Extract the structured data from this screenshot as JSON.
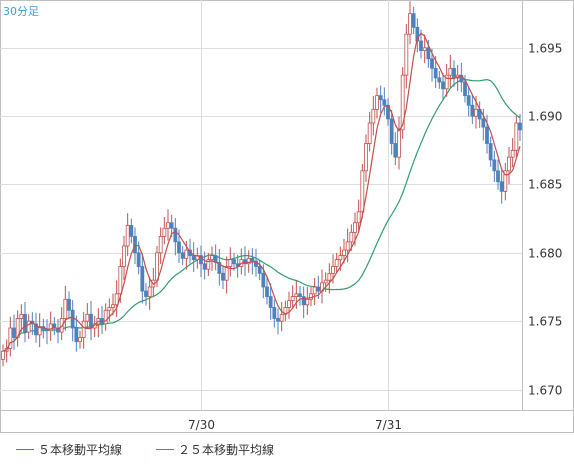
{
  "chart_data": {
    "type": "candlestick",
    "timeframe": "30分足",
    "y_ticks": [
      "1.695",
      "1.690",
      "1.685",
      "1.680",
      "1.675",
      "1.670"
    ],
    "y_tick_values": [
      1.695,
      1.69,
      1.685,
      1.68,
      1.675,
      1.67
    ],
    "x_ticks": [
      {
        "label": "7/30",
        "index": 54
      },
      {
        "label": "7/31",
        "index": 105
      }
    ],
    "ylim": [
      1.6685,
      1.6985
    ],
    "grid": true,
    "legend_position": "bottom-left",
    "series": [
      {
        "name": "５本移動平均線",
        "color": "#c0504d"
      },
      {
        "name": "２５本移動平均線",
        "color": "#2e9e6e"
      }
    ],
    "colors": {
      "up": "#c0504d",
      "down": "#4f81bd",
      "accent_text": "#3aa0d8",
      "grid": "#dddddd"
    },
    "closes": [
      1.6728,
      1.673,
      1.6745,
      1.6738,
      1.6752,
      1.6755,
      1.6742,
      1.675,
      1.6748,
      1.674,
      1.6746,
      1.6744,
      1.6743,
      1.6748,
      1.6745,
      1.6742,
      1.6752,
      1.6766,
      1.6758,
      1.6745,
      1.6735,
      1.6738,
      1.675,
      1.6755,
      1.6745,
      1.6748,
      1.6752,
      1.6748,
      1.6758,
      1.676,
      1.6762,
      1.677,
      1.679,
      1.6805,
      1.682,
      1.6812,
      1.68,
      1.679,
      1.6772,
      1.6768,
      1.6775,
      1.678,
      1.68,
      1.6812,
      1.6818,
      1.6822,
      1.6818,
      1.6808,
      1.68,
      1.6796,
      1.6802,
      1.6798,
      1.6795,
      1.6798,
      1.6792,
      1.6788,
      1.6795,
      1.6798,
      1.6793,
      1.6785,
      1.678,
      1.679,
      1.6795,
      1.6792,
      1.679,
      1.6795,
      1.6792,
      1.6796,
      1.6794,
      1.679,
      1.6785,
      1.6775,
      1.6768,
      1.676,
      1.6752,
      1.675,
      1.6755,
      1.676,
      1.6765,
      1.6768,
      1.677,
      1.6768,
      1.6762,
      1.6766,
      1.677,
      1.6775,
      1.6772,
      1.6778,
      1.678,
      1.6785,
      1.679,
      1.6795,
      1.6798,
      1.6802,
      1.6808,
      1.6815,
      1.6822,
      1.683,
      1.686,
      1.688,
      1.6895,
      1.6905,
      1.6915,
      1.6912,
      1.6908,
      1.6898,
      1.688,
      1.687,
      1.689,
      1.693,
      1.696,
      1.6975,
      1.6965,
      1.6955,
      1.6948,
      1.695,
      1.6942,
      1.6935,
      1.6928,
      1.6925,
      1.692,
      1.693,
      1.6935,
      1.6928,
      1.693,
      1.6925,
      1.6915,
      1.6908,
      1.69,
      1.6905,
      1.6898,
      1.6892,
      1.688,
      1.6868,
      1.686,
      1.6852,
      1.6845,
      1.686,
      1.687,
      1.6875,
      1.6895,
      1.689
    ]
  },
  "legend": {
    "ma5": "５本移動平均線",
    "ma25": "２５本移動平均線"
  }
}
